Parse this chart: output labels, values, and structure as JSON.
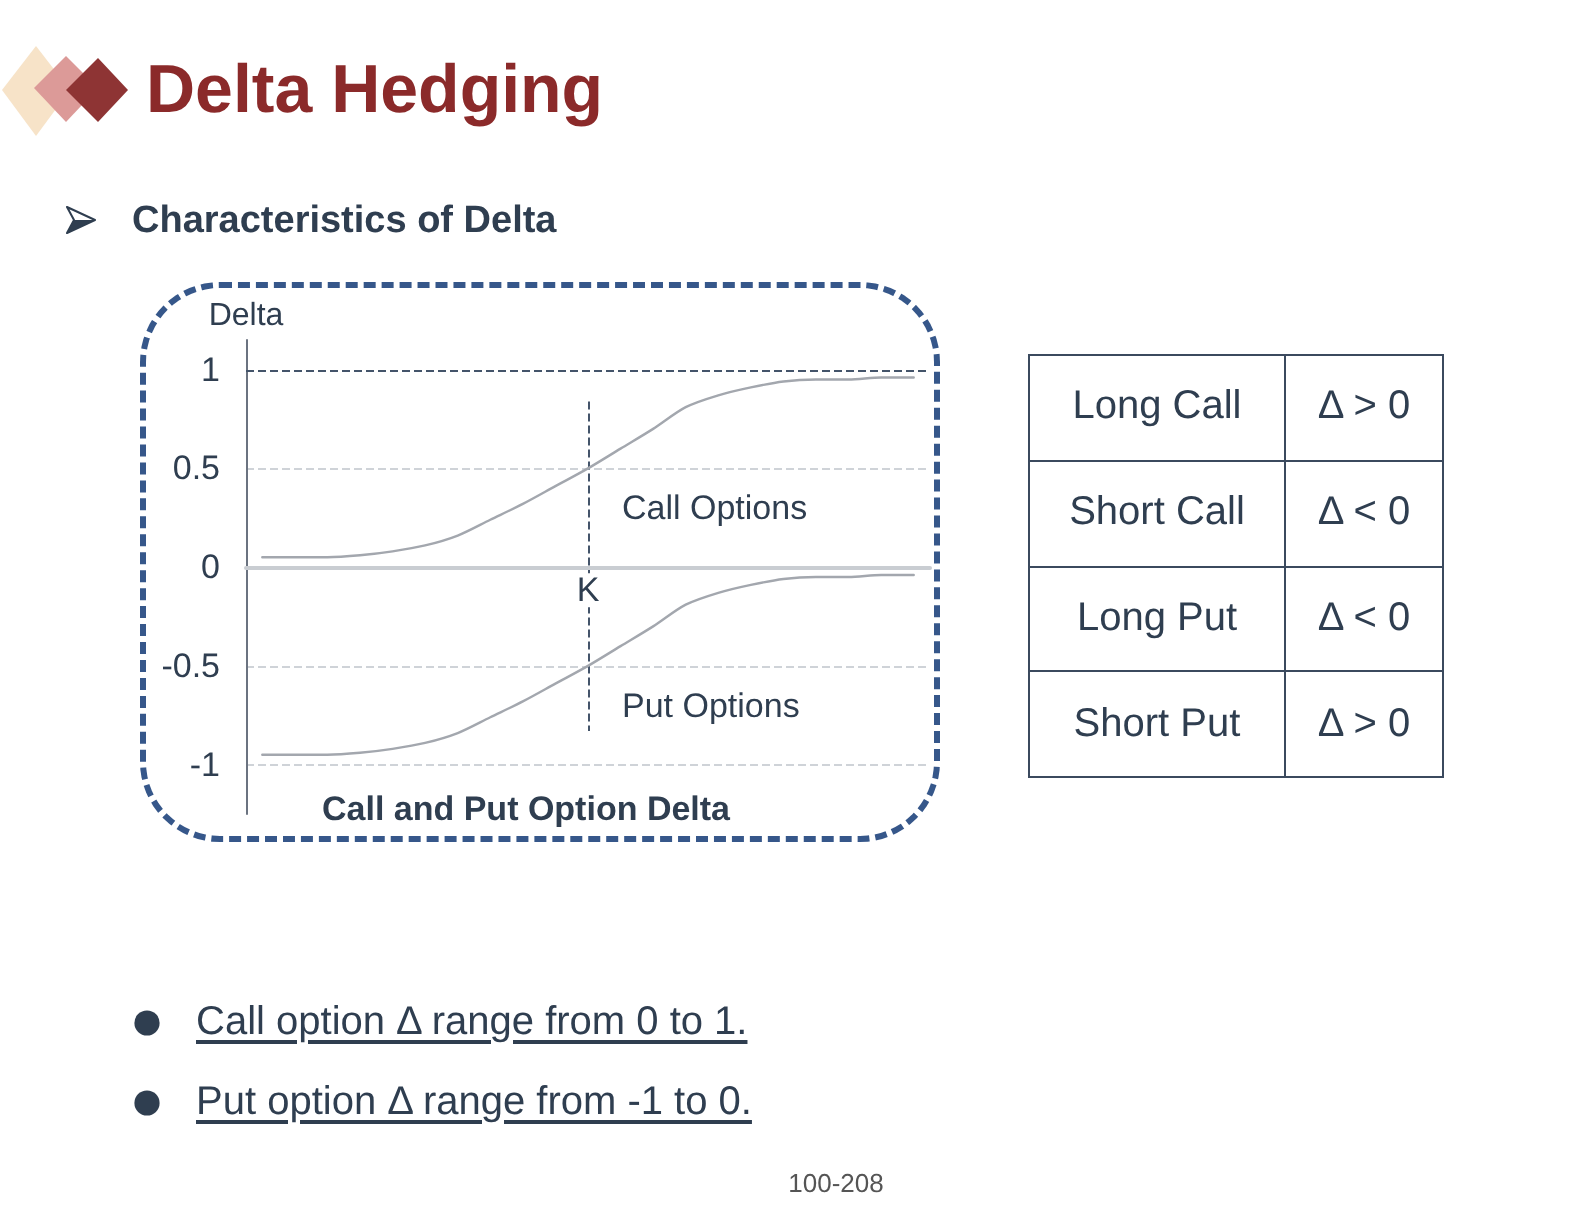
{
  "chart_data": [
    {
      "type": "other",
      "title": "Delta Hedging",
      "subtitle": "Characteristics of Delta"
    },
    {
      "type": "line",
      "title": "Call and Put Option Delta",
      "ylabel": "Delta",
      "categories": [
        null,
        null,
        null,
        null,
        null,
        null,
        null,
        null,
        null,
        null,
        "K",
        null,
        null,
        null,
        null,
        null,
        null,
        null,
        null,
        null,
        null
      ],
      "series": [
        {
          "name": "Call Options",
          "color": "#a3a7ae",
          "values": [
            0.05,
            0.05,
            0.05,
            0.06,
            0.08,
            0.11,
            0.16,
            0.24,
            0.32,
            0.41,
            0.5,
            0.6,
            0.7,
            0.81,
            0.87,
            0.91,
            0.94,
            0.95,
            0.95,
            0.96,
            0.96
          ]
        },
        {
          "name": "Put Options",
          "color": "#a3a7ae",
          "values": [
            -0.95,
            -0.95,
            -0.95,
            -0.94,
            -0.92,
            -0.89,
            -0.84,
            -0.76,
            -0.68,
            -0.59,
            -0.5,
            -0.4,
            -0.3,
            -0.19,
            -0.13,
            -0.09,
            -0.06,
            -0.05,
            -0.05,
            -0.04,
            -0.04
          ]
        }
      ],
      "ylim": [
        -1.25,
        1.15
      ],
      "yticks": [
        -1,
        -0.5,
        0,
        0.5,
        1
      ],
      "grid": "y",
      "marker": "none",
      "ref_lines": [
        {
          "axis": "y",
          "value": 1,
          "color": "#44546a",
          "line_style": "dashed"
        },
        {
          "axis": "x",
          "value": "K",
          "color": "#44546a",
          "line_style": "dashed"
        }
      ]
    },
    {
      "type": "other",
      "annotations": [
        "Long Call",
        "Δ > 0",
        "Short Call",
        "Δ < 0",
        "Long Put",
        "Δ < 0",
        "Short Put",
        "Δ > 0"
      ]
    },
    {
      "type": "other",
      "annotations": [
        "Call option Δ range from 0 to 1.",
        "Put option Δ range from -1 to 0."
      ]
    },
    {
      "type": "other",
      "annotations": [
        "100-208"
      ]
    }
  ]
}
